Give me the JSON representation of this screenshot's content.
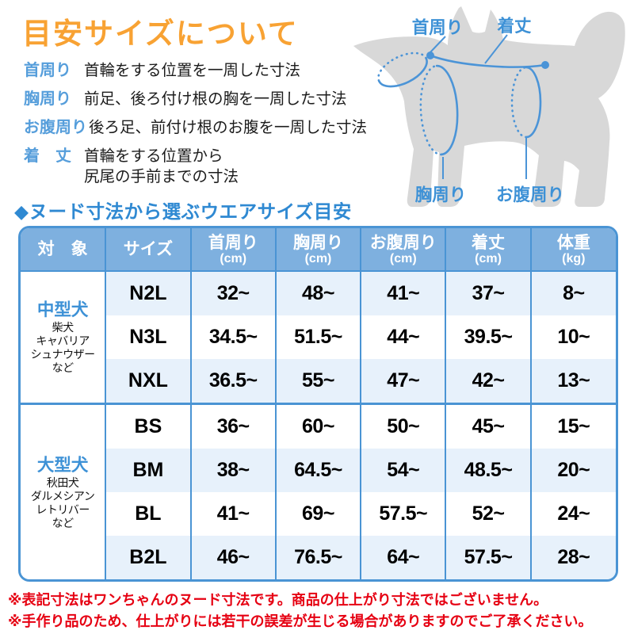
{
  "title": "目安サイズについて",
  "definitions": [
    {
      "label": "首周り",
      "lines": [
        "首輪をする位置を一周した寸法"
      ]
    },
    {
      "label": "胸周り",
      "lines": [
        "前足、後ろ付け根の胸を一周した寸法"
      ]
    },
    {
      "label": "お腹周り",
      "lines": [
        "後ろ足、前付け根のお腹を一周した寸法"
      ]
    },
    {
      "label": "着　丈",
      "lines": [
        "首輪をする位置から",
        "尻尾の手前までの寸法"
      ]
    }
  ],
  "diagram": {
    "neck_label": "首周り",
    "length_label": "着丈",
    "chest_label": "胸周り",
    "belly_label": "お腹周り"
  },
  "table_heading": "◆ヌード寸法から選ぶウエアサイズ目安",
  "table": {
    "headers": [
      {
        "main": "対　象",
        "sub": ""
      },
      {
        "main": "サイズ",
        "sub": ""
      },
      {
        "main": "首周り",
        "sub": "(cm)"
      },
      {
        "main": "胸周り",
        "sub": "(cm)"
      },
      {
        "main": "お腹周り",
        "sub": "(cm)"
      },
      {
        "main": "着丈",
        "sub": "(cm)"
      },
      {
        "main": "体重",
        "sub": "(kg)"
      }
    ],
    "groups": [
      {
        "target": "中型犬",
        "breeds": [
          "柴犬",
          "キャバリア",
          "シュナウザー",
          "など"
        ],
        "rows": [
          {
            "size": "N2L",
            "neck": "32~",
            "chest": "48~",
            "belly": "41~",
            "length": "37~",
            "weight": "8~"
          },
          {
            "size": "N3L",
            "neck": "34.5~",
            "chest": "51.5~",
            "belly": "44~",
            "length": "39.5~",
            "weight": "10~"
          },
          {
            "size": "NXL",
            "neck": "36.5~",
            "chest": "55~",
            "belly": "47~",
            "length": "42~",
            "weight": "13~"
          }
        ]
      },
      {
        "target": "大型犬",
        "breeds": [
          "秋田犬",
          "ダルメシアン",
          "レトリバー",
          "など"
        ],
        "rows": [
          {
            "size": "BS",
            "neck": "36~",
            "chest": "60~",
            "belly": "50~",
            "length": "45~",
            "weight": "15~"
          },
          {
            "size": "BM",
            "neck": "38~",
            "chest": "64.5~",
            "belly": "54~",
            "length": "48.5~",
            "weight": "20~"
          },
          {
            "size": "BL",
            "neck": "41~",
            "chest": "69~",
            "belly": "57.5~",
            "length": "52~",
            "weight": "24~"
          },
          {
            "size": "B2L",
            "neck": "46~",
            "chest": "76.5~",
            "belly": "64~",
            "length": "57.5~",
            "weight": "28~"
          }
        ]
      }
    ]
  },
  "notes": [
    "※表記寸法はワンちゃんのヌード寸法です。商品の仕上がり寸法ではございません。",
    "※手作り品のため、仕上がりには若干の誤差が生じる場合がありますのでご了承ください。"
  ],
  "colors": {
    "title_orange": "#f8a233",
    "heading_blue": "#2f89d2",
    "table_line_blue": "#4a94d4",
    "header_bg_blue": "#7eb0df",
    "stripe_blue": "#e7f1fb",
    "note_red": "#e60012",
    "dog_gray": "#d8d8d8",
    "diagram_blue": "#4b94d7"
  }
}
